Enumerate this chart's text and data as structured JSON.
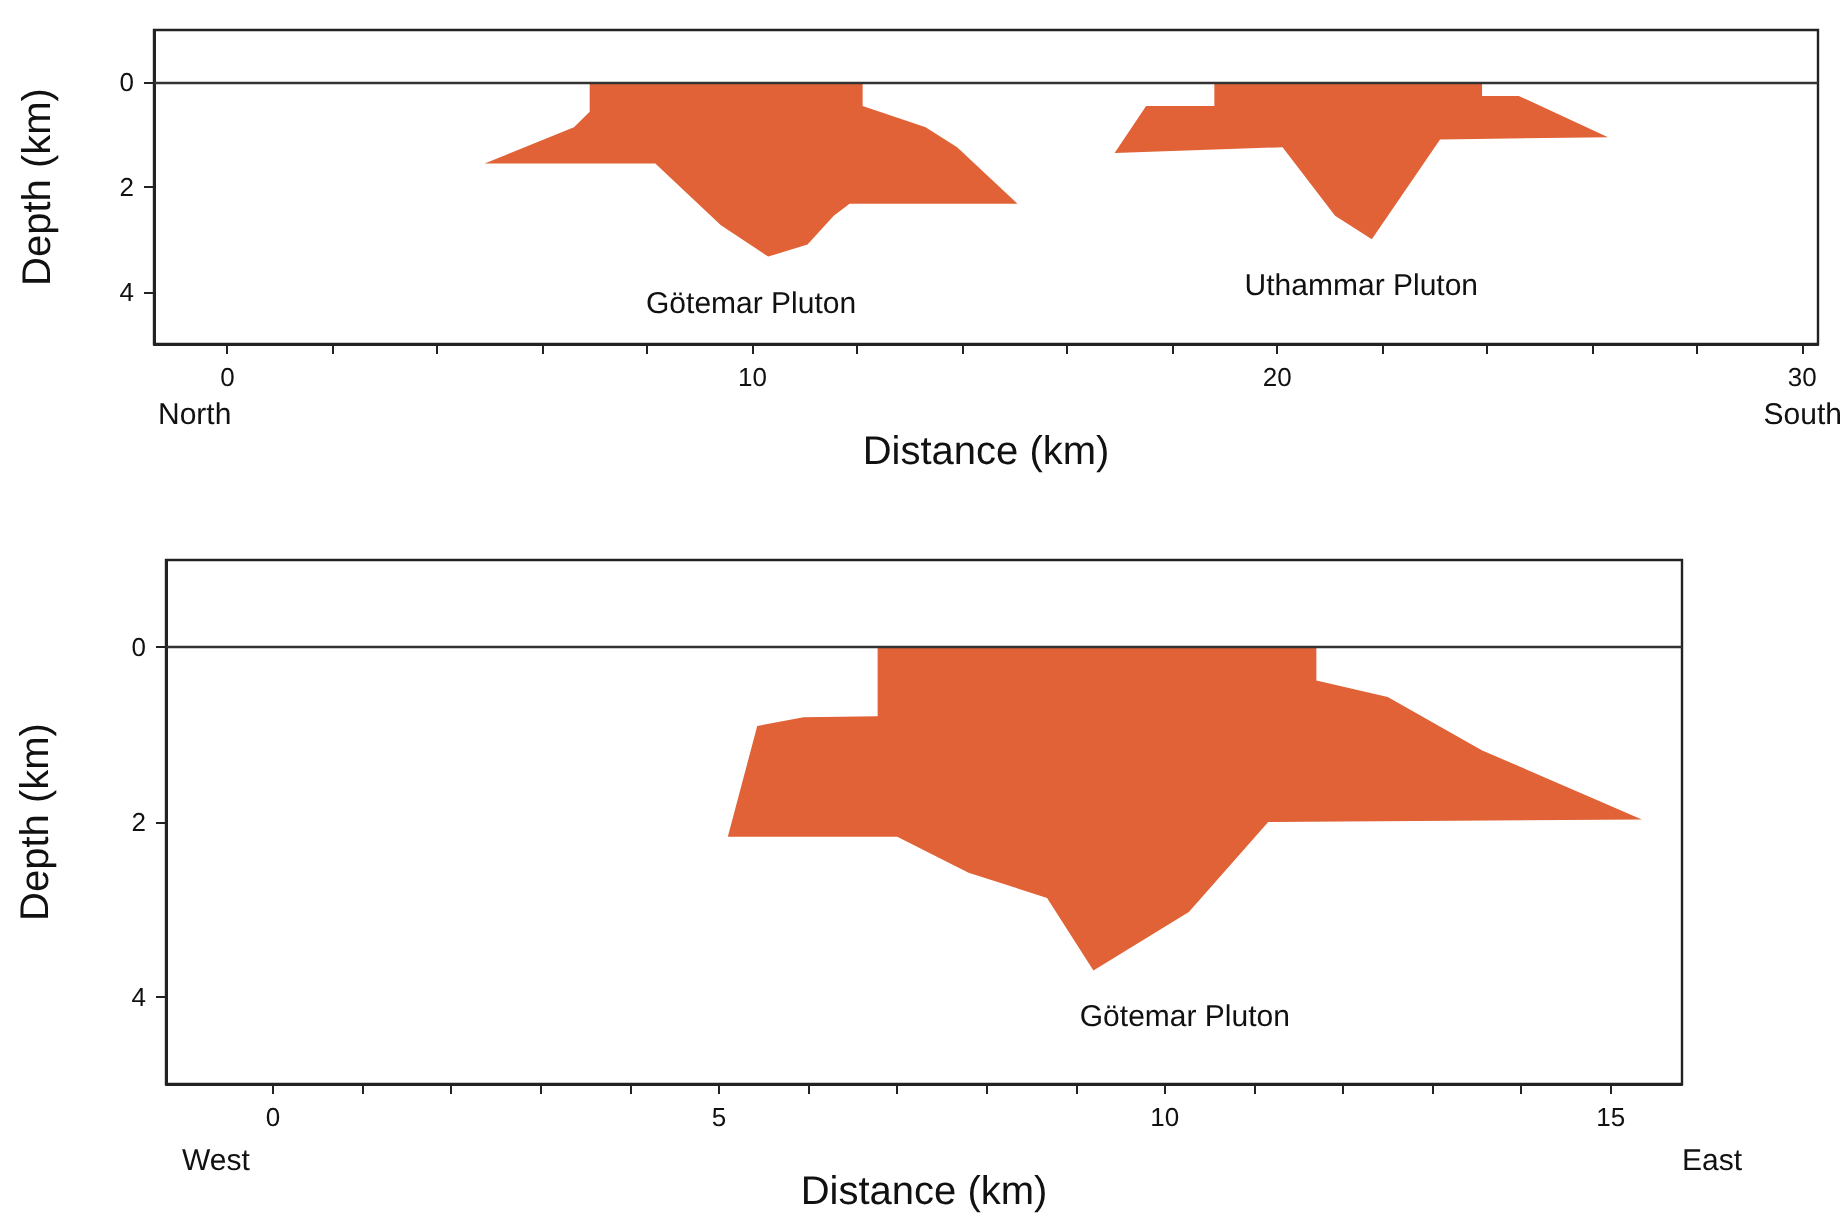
{
  "chart_data": [
    {
      "type": "area",
      "xlabel": "Distance (km)",
      "ylabel": "Depth (km)",
      "xlim": [
        -1.4,
        30.3
      ],
      "ylim": [
        5,
        -1
      ],
      "xticks": [
        0,
        {
          "value": 2,
          "label": null
        },
        {
          "value": 4,
          "label": null
        },
        {
          "value": 6,
          "label": null
        },
        {
          "value": 8,
          "label": null
        },
        10,
        {
          "value": 12,
          "label": null
        },
        {
          "value": 14,
          "label": null
        },
        {
          "value": 16,
          "label": null
        },
        {
          "value": 18,
          "label": null
        },
        20,
        {
          "value": 22,
          "label": null
        },
        {
          "value": 24,
          "label": null
        },
        {
          "value": 26,
          "label": null
        },
        {
          "value": 28,
          "label": null
        },
        30
      ],
      "yticks": [
        0,
        2,
        4
      ],
      "grid": false,
      "series": [
        {
          "name": "Götemar Pluton",
          "color": "#e06236",
          "x": [
            6.9,
            6.9,
            6.6,
            4.9,
            8.15,
            9.4,
            10.3,
            11.05,
            11.55,
            11.85,
            15.05,
            13.9,
            13.3,
            12.1,
            12.1
          ],
          "values": [
            0,
            0.56,
            0.86,
            1.55,
            1.55,
            2.73,
            3.33,
            3.1,
            2.55,
            2.32,
            2.32,
            1.24,
            0.86,
            0.45,
            0
          ]
        },
        {
          "name": "Uthammar Pluton",
          "color": "#e06236",
          "x": [
            18.8,
            18.8,
            17.5,
            16.9,
            20.1,
            21.1,
            21.8,
            23.1,
            26.3,
            24.6,
            23.9,
            23.9
          ],
          "values": [
            0,
            0.45,
            0.45,
            1.35,
            1.24,
            2.55,
            3.0,
            1.09,
            1.05,
            0.26,
            0.26,
            0
          ]
        }
      ],
      "ref_lines": [
        {
          "axis": "y",
          "value": 0,
          "color": "#333333"
        }
      ],
      "annotations": [
        "North",
        "South"
      ]
    },
    {
      "type": "area",
      "xlabel": "Distance (km)",
      "ylabel": "Depth (km)",
      "xlim": [
        -1.2,
        15.8
      ],
      "ylim": [
        5,
        -1
      ],
      "xticks": [
        0,
        {
          "value": 1,
          "label": null
        },
        {
          "value": 2,
          "label": null
        },
        {
          "value": 3,
          "label": null
        },
        {
          "value": 4,
          "label": null
        },
        5,
        {
          "value": 6,
          "label": null
        },
        {
          "value": 7,
          "label": null
        },
        {
          "value": 8,
          "label": null
        },
        {
          "value": 9,
          "label": null
        },
        10,
        {
          "value": 11,
          "label": null
        },
        {
          "value": 12,
          "label": null
        },
        {
          "value": 13,
          "label": null
        },
        {
          "value": 14,
          "label": null
        },
        15
      ],
      "yticks": [
        0,
        2,
        4
      ],
      "grid": false,
      "series": [
        {
          "name": "Götemar Pluton",
          "color": "#e06236",
          "x": [
            6.78,
            6.78,
            5.95,
            5.43,
            5.1,
            7.0,
            7.8,
            8.68,
            9.2,
            10.27,
            11.16,
            15.35,
            13.56,
            12.5,
            11.7,
            11.7
          ],
          "values": [
            0,
            0.79,
            0.8,
            0.9,
            2.17,
            2.17,
            2.58,
            2.87,
            3.7,
            3.03,
            2.0,
            1.97,
            1.18,
            0.57,
            0.38,
            0
          ]
        }
      ],
      "ref_lines": [
        {
          "axis": "y",
          "value": 0,
          "color": "#333333"
        }
      ],
      "annotations": [
        "West",
        "East"
      ]
    }
  ]
}
